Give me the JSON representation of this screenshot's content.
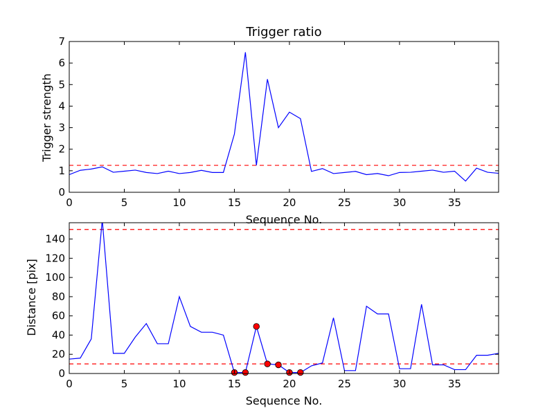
{
  "chart_data": [
    {
      "type": "line",
      "title": "Trigger ratio",
      "xlabel": "Sequence No.",
      "ylabel": "Trigger strength",
      "xlim": [
        0,
        39
      ],
      "ylim": [
        0,
        7
      ],
      "xticks": [
        0,
        5,
        10,
        15,
        20,
        25,
        30,
        35
      ],
      "yticks": [
        0,
        1,
        2,
        3,
        4,
        5,
        6,
        7
      ],
      "grid": false,
      "colors": {
        "line": "#0000ff",
        "threshold": "#ff0000"
      },
      "series": [
        {
          "x": [
            0,
            1,
            2,
            3,
            4,
            5,
            6,
            7,
            8,
            9,
            10,
            11,
            12,
            13,
            14,
            15,
            16,
            17,
            18,
            19,
            20,
            21,
            22,
            23,
            24,
            25,
            26,
            27,
            28,
            29,
            30,
            31,
            32,
            33,
            34,
            35,
            36,
            37,
            38,
            39
          ],
          "values": [
            0.82,
            1.02,
            1.08,
            1.18,
            0.93,
            0.98,
            1.03,
            0.92,
            0.87,
            0.98,
            0.87,
            0.92,
            1.02,
            0.92,
            0.92,
            2.7,
            6.5,
            1.25,
            5.25,
            3.0,
            3.72,
            3.42,
            0.97,
            1.1,
            0.87,
            0.92,
            0.97,
            0.82,
            0.87,
            0.77,
            0.92,
            0.93,
            0.98,
            1.03,
            0.93,
            0.98,
            0.52,
            1.12,
            0.93,
            0.88
          ]
        }
      ],
      "hlines": [
        1.25
      ]
    },
    {
      "type": "line",
      "title": "",
      "xlabel": "Sequence No.",
      "ylabel": "Distance [pix]",
      "xlim": [
        0,
        39
      ],
      "ylim": [
        0,
        157
      ],
      "xticks": [
        0,
        5,
        10,
        15,
        20,
        25,
        30,
        35
      ],
      "yticks": [
        0,
        20,
        40,
        60,
        80,
        100,
        120,
        140
      ],
      "grid": false,
      "colors": {
        "line": "#0000ff",
        "threshold": "#ff0000",
        "marker": "#ff0000"
      },
      "series": [
        {
          "x": [
            0,
            1,
            2,
            3,
            4,
            5,
            6,
            7,
            8,
            9,
            10,
            11,
            12,
            13,
            14,
            15,
            16,
            17,
            18,
            19,
            20,
            21,
            22,
            23,
            24,
            25,
            26,
            27,
            28,
            29,
            30,
            31,
            32,
            33,
            34,
            35,
            36,
            37,
            38,
            39
          ],
          "values": [
            15,
            16,
            36,
            160,
            21,
            21,
            38,
            52,
            31,
            31,
            80,
            49,
            43,
            43,
            40,
            1,
            1,
            49,
            10,
            9,
            1,
            1,
            8,
            11,
            58,
            3,
            3,
            70,
            62,
            62,
            5,
            5,
            72,
            9,
            9,
            4,
            4,
            19,
            19,
            21
          ]
        }
      ],
      "markers": {
        "x": [
          15,
          16,
          17,
          18,
          19,
          20,
          21
        ],
        "values": [
          1,
          1,
          49,
          10,
          9,
          1,
          1
        ]
      },
      "hlines": [
        150,
        10
      ]
    }
  ]
}
